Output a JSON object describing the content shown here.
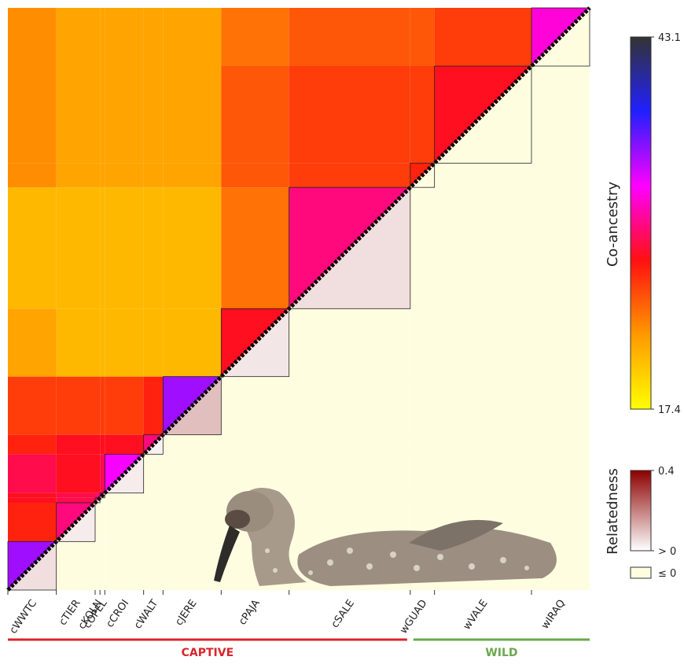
{
  "chart_data": {
    "type": "heatmap",
    "groups": [
      "cWWTC",
      "cTIER",
      "cKOLN",
      "cOPEL",
      "cCROI",
      "cWALT",
      "cJERE",
      "cPAJA",
      "cSALE",
      "wGUAD",
      "wVALE",
      "wIRAQ"
    ],
    "group_sizes": [
      10,
      8,
      1,
      1,
      8,
      4,
      12,
      14,
      25,
      5,
      20,
      12
    ],
    "coancestry": [
      [
        35,
        27,
        28,
        28,
        29,
        27,
        26,
        22,
        21,
        23,
        23,
        23
      ],
      [
        30,
        29,
        29,
        28,
        28,
        26,
        21,
        21,
        22,
        22,
        22
      ],
      [
        30,
        30,
        28,
        28,
        26,
        21,
        21,
        22,
        22,
        22
      ],
      [
        30,
        29,
        28,
        26,
        21,
        21,
        22,
        22,
        22
      ],
      [
        33,
        28,
        26,
        21,
        21,
        22,
        22,
        22
      ],
      [
        30,
        27,
        21,
        21,
        22,
        22,
        22
      ],
      [
        35,
        21,
        21,
        22,
        22,
        22
      ],
      [
        28,
        24,
        25,
        25,
        24
      ],
      [
        30,
        26,
        26,
        25
      ],
      [
        27,
        26,
        25
      ],
      [
        28,
        26
      ],
      [
        32
      ]
    ],
    "relatedness": [
      [
        0.05,
        -0.02,
        -0.02,
        -0.02,
        -0.02,
        -0.02,
        -0.02,
        -0.02,
        -0.02,
        -0.02,
        -0.02,
        -0.02
      ],
      [
        0.03,
        -0.02,
        -0.02,
        -0.02,
        -0.02,
        -0.02,
        -0.02,
        -0.02,
        -0.02,
        -0.02,
        -0.02
      ],
      [
        0.03,
        -0.02,
        -0.02,
        -0.02,
        -0.02,
        -0.02,
        -0.02,
        -0.02,
        -0.02,
        -0.02
      ],
      [
        0.03,
        -0.02,
        -0.02,
        -0.02,
        -0.02,
        -0.02,
        -0.02,
        -0.02,
        -0.02
      ],
      [
        0.03,
        -0.02,
        -0.02,
        -0.02,
        -0.02,
        -0.02,
        -0.02,
        -0.02
      ],
      [
        0.02,
        -0.02,
        -0.02,
        -0.02,
        -0.02,
        -0.02,
        -0.02
      ],
      [
        0.1,
        -0.02,
        -0.02,
        -0.02,
        -0.02,
        -0.02
      ],
      [
        0.04,
        -0.02,
        -0.02,
        -0.02,
        -0.02
      ],
      [
        0.05,
        -0.02,
        -0.02,
        -0.02
      ],
      [
        -0.02,
        -0.02,
        -0.02
      ],
      [
        -0.02,
        -0.02
      ],
      [
        -0.02
      ]
    ],
    "coancestry_label": "Co-ancestry",
    "coancestry_lim": [
      17.4,
      43.1
    ],
    "coancestry_ticks": [
      17.4,
      43.1
    ],
    "coancestry_colors": [
      "#ffff00",
      "#ff9900",
      "#ff1010",
      "#ff00ff",
      "#2020ff",
      "#333333"
    ],
    "relatedness_label": "Relatedness",
    "relatedness_lim": [
      0,
      0.4
    ],
    "relatedness_ticks": [
      {
        "value": 0,
        "label": "> 0"
      },
      0.4
    ],
    "relatedness_colors": [
      "#ffffff",
      "#8b0000"
    ],
    "nonpositive_label": "≤ 0",
    "nonpositive_color": "#fffde0",
    "sections": [
      {
        "label": "CAPTIVE",
        "color": "#d9242b"
      },
      {
        "label": "WILD",
        "color": "#6aa84f"
      }
    ]
  }
}
